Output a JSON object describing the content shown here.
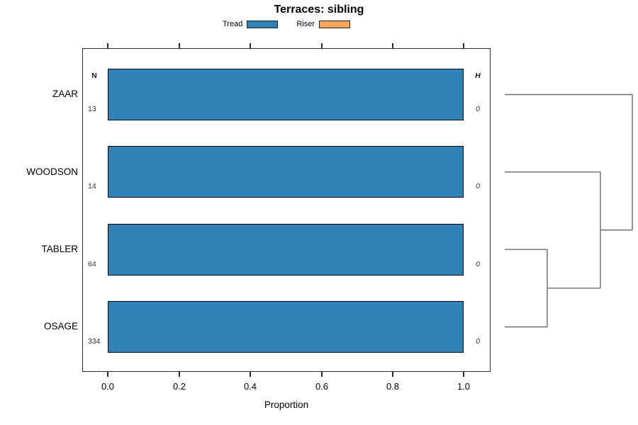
{
  "chart_data": {
    "type": "bar",
    "orientation": "horizontal",
    "title": "Terraces: sibling",
    "xlabel": "Proportion",
    "xlim": [
      0.0,
      1.0
    ],
    "xticks": [
      0.0,
      0.2,
      0.4,
      0.6,
      0.8,
      1.0
    ],
    "xtick_labels": [
      "0.0",
      "0.2",
      "0.4",
      "0.6",
      "0.8",
      "1.0"
    ],
    "grid": "off",
    "legend_position": "top-center",
    "categories": [
      "ZAAR",
      "WOODSON",
      "TABLER",
      "OSAGE"
    ],
    "series": [
      {
        "name": "Tread",
        "color": "#2E82B8",
        "values": [
          1.0,
          1.0,
          1.0,
          1.0
        ]
      },
      {
        "name": "Riser",
        "color": "#FBA65C",
        "values": [
          0.0,
          0.0,
          0.0,
          0.0
        ]
      }
    ],
    "n_column": {
      "header": "N",
      "values": [
        "13",
        "14",
        "64",
        "334"
      ]
    },
    "h_column": {
      "header": "H",
      "values": [
        "0",
        "0",
        "0",
        "0"
      ]
    },
    "dendrogram": {
      "description": "right-side cluster tree; leaves aligned to bar rows; heights normalized 0-1",
      "leaf_order": [
        "ZAAR",
        "WOODSON",
        "TABLER",
        "OSAGE"
      ],
      "merges": [
        {
          "members": [
            "TABLER",
            "OSAGE"
          ],
          "height": 0.333
        },
        {
          "members": [
            "WOODSON",
            "TABLER+OSAGE"
          ],
          "height": 0.75
        },
        {
          "members": [
            "ZAAR",
            "WOODSON+TABLER+OSAGE"
          ],
          "height": 1.0
        }
      ],
      "segments": [
        {
          "h1": 0,
          "r1": 0,
          "h2": 1.0,
          "r2": 0
        },
        {
          "h1": 0,
          "r1": 1,
          "h2": 0.75,
          "r2": 1
        },
        {
          "h1": 0,
          "r1": 2,
          "h2": 0.333,
          "r2": 2
        },
        {
          "h1": 0,
          "r1": 3,
          "h2": 0.333,
          "r2": 3
        },
        {
          "h1": 0.333,
          "r1": 2,
          "h2": 0.333,
          "r2": 3
        },
        {
          "h1": 0.333,
          "r1": 2.5,
          "h2": 0.75,
          "r2": 2.5
        },
        {
          "h1": 0.75,
          "r1": 1,
          "h2": 0.75,
          "r2": 2.5
        },
        {
          "h1": 0.75,
          "r1": 1.75,
          "h2": 1.0,
          "r2": 1.75
        },
        {
          "h1": 1.0,
          "r1": 0,
          "h2": 1.0,
          "r2": 1.75
        }
      ]
    }
  },
  "legend": {
    "items": [
      {
        "label": "Tread",
        "color": "#2E82B8"
      },
      {
        "label": "Riser",
        "color": "#FBA65C"
      }
    ]
  },
  "colors": {
    "bar_fill": "#2E82B8",
    "riser_fill": "#FBA65C",
    "bar_border": "#000000",
    "box_border": "#2b2b2b",
    "dendrogram_line": "#6a6a6a"
  }
}
